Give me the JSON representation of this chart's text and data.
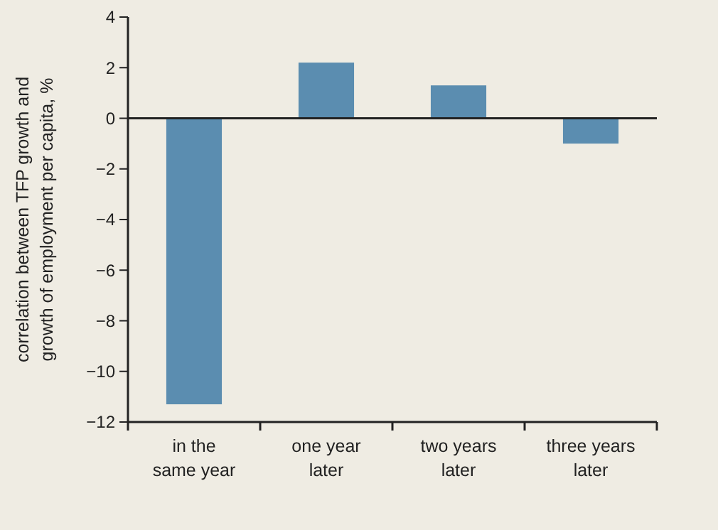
{
  "chart_data": {
    "type": "bar",
    "ylabel": "correlation between TFP growth and\ngrowth of employment per capita, %",
    "categories": [
      "in the\nsame year",
      "one year\nlater",
      "two years\nlater",
      "three years\nlater"
    ],
    "values": [
      -11.3,
      2.2,
      1.3,
      -1.0
    ],
    "color": "#5b8db0",
    "ylim": [
      -12,
      4
    ],
    "yticks": [
      {
        "value": -12,
        "label": "−12"
      },
      {
        "value": -10,
        "label": "−10"
      },
      {
        "value": -8,
        "label": "−8"
      },
      {
        "value": -6,
        "label": "−6"
      },
      {
        "value": -4,
        "label": "−4"
      },
      {
        "value": -2,
        "label": "−2"
      },
      0,
      2,
      4
    ],
    "ref_lines": [
      {
        "axis": "y",
        "value": 0,
        "color": "#222222"
      }
    ],
    "grid": false
  }
}
